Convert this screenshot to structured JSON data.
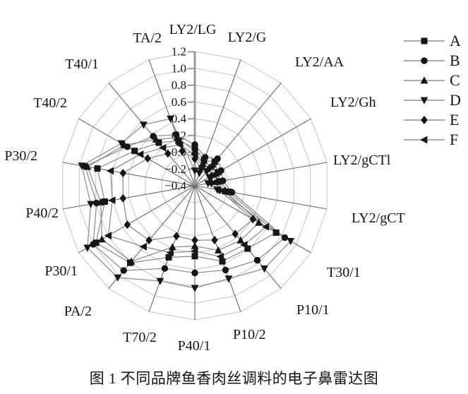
{
  "figure": {
    "caption": "图 1  不同品牌鱼香肉丝调料的电子鼻雷达图"
  },
  "chart_data": {
    "type": "radar",
    "categories": [
      "LY2/LG",
      "LY2/G",
      "LY2/AA",
      "LY2/Gh",
      "LY2/gCTl",
      "LY2/gCT",
      "T30/1",
      "P10/1",
      "P10/2",
      "P40/1",
      "T70/2",
      "PA/2",
      "P30/1",
      "P40/2",
      "P30/2",
      "T40/2",
      "T40/1",
      "TA/2"
    ],
    "radial_axis": {
      "min": -0.4,
      "max": 1.2,
      "step": 0.2,
      "tick_labels": [
        "1.2",
        "1.0",
        "0.8",
        "0.6",
        "0.4",
        "0.2",
        "0.0",
        "−0.2",
        "−0.4"
      ]
    },
    "grid": true,
    "legend_position": "top-right",
    "series": [
      {
        "name": "A",
        "marker": "square-icon",
        "values": [
          0.05,
          -0.08,
          -0.03,
          -0.08,
          -0.1,
          0.01,
          0.72,
          0.58,
          0.56,
          0.44,
          0.51,
          0.8,
          0.96,
          0.69,
          0.78,
          0.43,
          0.27,
          0.17
        ]
      },
      {
        "name": "B",
        "marker": "circle-icon",
        "values": [
          0.09,
          -0.04,
          0.02,
          -0.04,
          -0.06,
          0.05,
          0.84,
          0.76,
          0.67,
          0.64,
          0.65,
          0.92,
          1.0,
          0.79,
          0.93,
          0.53,
          0.37,
          0.25
        ]
      },
      {
        "name": "C",
        "marker": "triangle-up-icon",
        "values": [
          0.01,
          -0.12,
          -0.07,
          -0.11,
          -0.13,
          -0.03,
          0.48,
          0.45,
          0.42,
          0.32,
          0.38,
          0.78,
          0.88,
          0.74,
          0.9,
          0.57,
          0.32,
          0.21
        ]
      },
      {
        "name": "D",
        "marker": "triangle-down-icon",
        "values": [
          -0.22,
          -0.24,
          -0.18,
          -0.2,
          -0.24,
          -0.13,
          0.92,
          0.89,
          0.78,
          0.82,
          0.81,
          1.03,
          1.08,
          0.86,
          0.97,
          0.61,
          0.55,
          0.45
        ]
      },
      {
        "name": "E",
        "marker": "diamond-icon",
        "values": [
          -0.08,
          -0.18,
          -0.13,
          -0.17,
          -0.2,
          -0.1,
          0.4,
          0.35,
          0.29,
          0.25,
          0.24,
          0.45,
          0.53,
          0.47,
          0.47,
          0.25,
          0.1,
          0.04
        ]
      },
      {
        "name": "F",
        "marker": "triangle-left-icon",
        "values": [
          -0.03,
          -0.15,
          -0.1,
          -0.14,
          -0.16,
          -0.06,
          0.58,
          0.52,
          0.5,
          0.38,
          0.45,
          0.55,
          0.79,
          0.6,
          0.62,
          0.35,
          0.19,
          0.12
        ]
      }
    ],
    "colors": {
      "series_line": "#8f8f8f",
      "marker_fill": "#161616",
      "ring_grid": "#c3c3c3",
      "spoke": "#6a6a6a",
      "value_axis": "#9a9a9a",
      "text": "#141414"
    }
  }
}
